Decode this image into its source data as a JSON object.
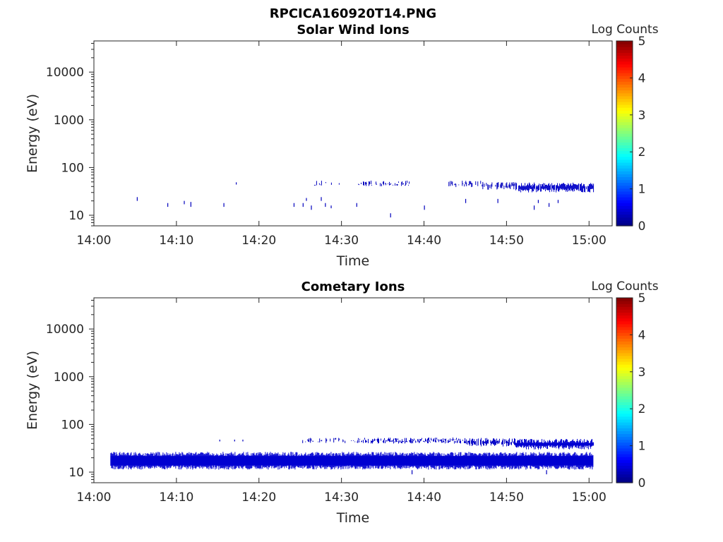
{
  "figure_title": "RPCICA160920T14.PNG",
  "chart_data": [
    {
      "type": "heatmap",
      "title": "Solar Wind Ions",
      "xlabel": "Time",
      "ylabel": "Energy (eV)",
      "y_scale": "log",
      "ylim": [
        6,
        45000
      ],
      "xlim": [
        "14:00",
        "15:02.8"
      ],
      "x_tick_labels": [
        "14:00",
        "14:10",
        "14:20",
        "14:30",
        "14:40",
        "14:50",
        "15:00"
      ],
      "y_tick_labels": [
        "10",
        "100",
        "1000",
        "10000"
      ],
      "colorbar": {
        "label": "Log Counts",
        "range": [
          0,
          5
        ],
        "ticks": [
          "0",
          "1",
          "2",
          "3",
          "4",
          "5"
        ],
        "colormap": "jet"
      },
      "grid": false,
      "segments": [
        {
          "t": "14:05.2",
          "e_lo": 20,
          "e_hi": 24,
          "v": 0.3
        },
        {
          "t": "14:08.9",
          "e_lo": 15,
          "e_hi": 18,
          "v": 0.3
        },
        {
          "t": "14:10.9",
          "e_lo": 17,
          "e_hi": 20,
          "v": 0.3
        },
        {
          "t": "14:11.7",
          "e_lo": 15,
          "e_hi": 19,
          "v": 0.3
        },
        {
          "t": "14:15.7",
          "e_lo": 15,
          "e_hi": 18,
          "v": 0.3
        },
        {
          "t": "14:17.2",
          "e_lo": 44,
          "e_hi": 49,
          "v": 0.3
        },
        {
          "t": "14:24.2",
          "e_lo": 15,
          "e_hi": 18,
          "v": 0.3
        },
        {
          "t": "14:25.3",
          "e_lo": 15,
          "e_hi": 18,
          "v": 0.3
        },
        {
          "t": "14:25.7",
          "e_lo": 20,
          "e_hi": 23,
          "v": 0.3
        },
        {
          "t": "14:26.3",
          "e_lo": 13,
          "e_hi": 16,
          "v": 0.3
        },
        {
          "t": "14:27.5",
          "e_lo": 20,
          "e_hi": 24,
          "v": 0.3
        },
        {
          "t": "14:28.0",
          "e_lo": 15,
          "e_hi": 18,
          "v": 0.3
        },
        {
          "t": "14:28.7",
          "e_lo": 14,
          "e_hi": 16,
          "v": 0.3
        },
        {
          "t": "14:31.8",
          "e_lo": 15,
          "e_hi": 18,
          "v": 0.3
        },
        {
          "t": "14:35.9",
          "e_lo": 9,
          "e_hi": 11,
          "v": 0.3
        },
        {
          "t": "14:40.0",
          "e_lo": 13,
          "e_hi": 16,
          "v": 0.3
        },
        {
          "t": "14:45.0",
          "e_lo": 18,
          "e_hi": 22,
          "v": 0.3
        },
        {
          "t": "14:48.9",
          "e_lo": 18,
          "e_hi": 22,
          "v": 0.3
        },
        {
          "t": "14:53.3",
          "e_lo": 13,
          "e_hi": 16,
          "v": 0.3
        },
        {
          "t": "14:53.8",
          "e_lo": 18,
          "e_hi": 21,
          "v": 0.3
        },
        {
          "t": "14:55.1",
          "e_lo": 15,
          "e_hi": 18,
          "v": 0.3
        },
        {
          "t": "14:56.2",
          "e_lo": 18,
          "e_hi": 21,
          "v": 0.3
        }
      ],
      "bands": [
        {
          "t_start": "14:26.0",
          "t_end": "14:30.0",
          "e_lo": 44,
          "e_hi": 48,
          "density": 0.22,
          "v": 0.3
        },
        {
          "t_start": "14:32.0",
          "t_end": "14:38.5",
          "e_lo": 44,
          "e_hi": 48,
          "density": 0.45,
          "v": 0.3
        },
        {
          "t_start": "14:42.8",
          "t_end": "14:47.0",
          "e_lo": 43,
          "e_hi": 48,
          "density": 0.55,
          "v": 0.3
        },
        {
          "t_start": "14:47.0",
          "t_end": "14:51.0",
          "e_lo": 38,
          "e_hi": 45,
          "density": 0.65,
          "v": 0.3
        },
        {
          "t_start": "14:51.0",
          "t_end": "15:00.5",
          "e_lo": 33,
          "e_hi": 44,
          "density": 0.9,
          "v": 0.35
        }
      ]
    },
    {
      "type": "heatmap",
      "title": "Cometary Ions",
      "xlabel": "Time",
      "ylabel": "Energy (eV)",
      "y_scale": "log",
      "ylim": [
        6,
        45000
      ],
      "xlim": [
        "14:00",
        "15:02.8"
      ],
      "x_tick_labels": [
        "14:00",
        "14:10",
        "14:20",
        "14:30",
        "14:40",
        "14:50",
        "15:00"
      ],
      "y_tick_labels": [
        "10",
        "100",
        "1000",
        "10000"
      ],
      "colorbar": {
        "label": "Log Counts",
        "range": [
          0,
          5
        ],
        "ticks": [
          "0",
          "1",
          "2",
          "3",
          "4",
          "5"
        ],
        "colormap": "jet"
      },
      "grid": false,
      "segments": [
        {
          "t": "14:15.2",
          "e_lo": 44,
          "e_hi": 48,
          "v": 0.3
        },
        {
          "t": "14:17.0",
          "e_lo": 44,
          "e_hi": 48,
          "v": 0.3
        },
        {
          "t": "14:18.0",
          "e_lo": 44,
          "e_hi": 48,
          "v": 0.3
        },
        {
          "t": "14:38.5",
          "e_lo": 9,
          "e_hi": 11,
          "v": 0.3
        },
        {
          "t": "14:54.8",
          "e_lo": 9,
          "e_hi": 11,
          "v": 0.3
        }
      ],
      "bands": [
        {
          "t_start": "14:02.0",
          "t_end": "15:00.5",
          "e_lo": 12.5,
          "e_hi": 24,
          "density": 1.0,
          "v": 0.4
        },
        {
          "t_start": "14:25.0",
          "t_end": "14:32.0",
          "e_lo": 44,
          "e_hi": 48,
          "density": 0.3,
          "v": 0.3
        },
        {
          "t_start": "14:32.0",
          "t_end": "14:45.0",
          "e_lo": 44,
          "e_hi": 48,
          "density": 0.8,
          "v": 0.35
        },
        {
          "t_start": "14:45.0",
          "t_end": "14:51.0",
          "e_lo": 38,
          "e_hi": 47,
          "density": 0.75,
          "v": 0.35
        },
        {
          "t_start": "14:51.0",
          "t_end": "15:00.5",
          "e_lo": 33,
          "e_hi": 45,
          "density": 1.0,
          "v": 0.4
        }
      ]
    }
  ]
}
